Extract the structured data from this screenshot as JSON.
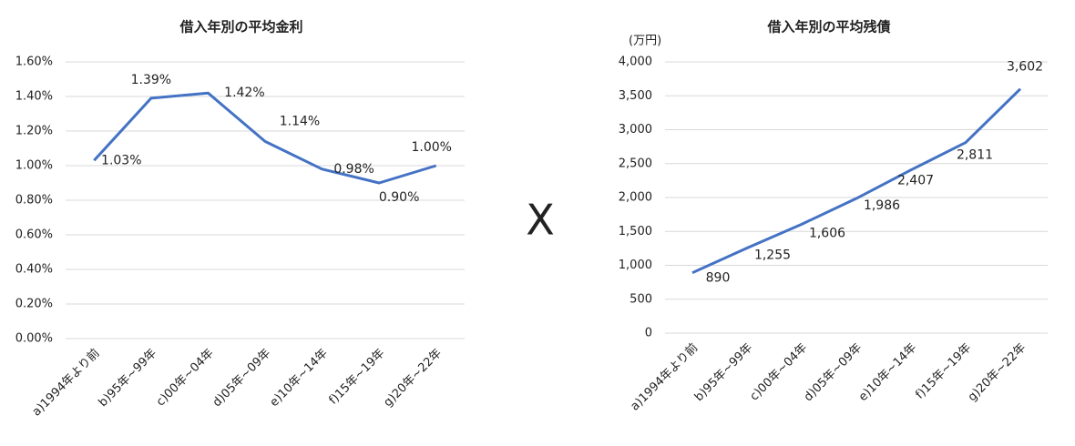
{
  "chart_data": [
    {
      "type": "line",
      "title": "借入年別の平均金利",
      "categories": [
        "a)1994年より前",
        "b)95年~99年",
        "c)00年~04年",
        "d)05年~09年",
        "e)10年~14年",
        "f)15年~19年",
        "g)20年~22年"
      ],
      "values": [
        1.03,
        1.39,
        1.42,
        1.14,
        0.98,
        0.9,
        1.0
      ],
      "value_labels": [
        "1.03%",
        "1.39%",
        "1.42%",
        "1.14%",
        "0.98%",
        "0.90%",
        "1.00%"
      ],
      "color": "#4472c4",
      "grid": true,
      "ylim": [
        0,
        1.6
      ],
      "yticks": [
        {
          "value": 0,
          "label": "0.00%"
        },
        {
          "value": 0.2,
          "label": "0.20%"
        },
        {
          "value": 0.4,
          "label": "0.40%"
        },
        {
          "value": 0.6,
          "label": "0.60%"
        },
        {
          "value": 0.8,
          "label": "0.80%"
        },
        {
          "value": 1.0,
          "label": "1.00%"
        },
        {
          "value": 1.2,
          "label": "1.20%"
        },
        {
          "value": 1.4,
          "label": "1.40%"
        },
        {
          "value": 1.6,
          "label": "1.60%"
        }
      ]
    },
    {
      "type": "line",
      "title": "借入年別の平均残債",
      "y_unit": "(万円)",
      "categories": [
        "a)1994年より前",
        "b)95年~99年",
        "c)00年~04年",
        "d)05年~09年",
        "e)10年~14年",
        "f)15年~19年",
        "g)20年~22年"
      ],
      "values": [
        890,
        1255,
        1606,
        1986,
        2407,
        2811,
        3602
      ],
      "value_labels": [
        "890",
        "1,255",
        "1,606",
        "1,986",
        "2,407",
        "2,811",
        "3,602"
      ],
      "color": "#4472c4",
      "grid": true,
      "ylim": [
        0,
        4000
      ],
      "yticks": [
        0,
        500,
        {
          "value": 1000,
          "label": "1,000"
        },
        {
          "value": 1500,
          "label": "1,500"
        },
        {
          "value": 2000,
          "label": "2,000"
        },
        {
          "value": 2500,
          "label": "2,500"
        },
        {
          "value": 3000,
          "label": "3,000"
        },
        {
          "value": 3500,
          "label": "3,500"
        },
        {
          "value": 4000,
          "label": "4,000"
        }
      ]
    }
  ],
  "separator": "X"
}
